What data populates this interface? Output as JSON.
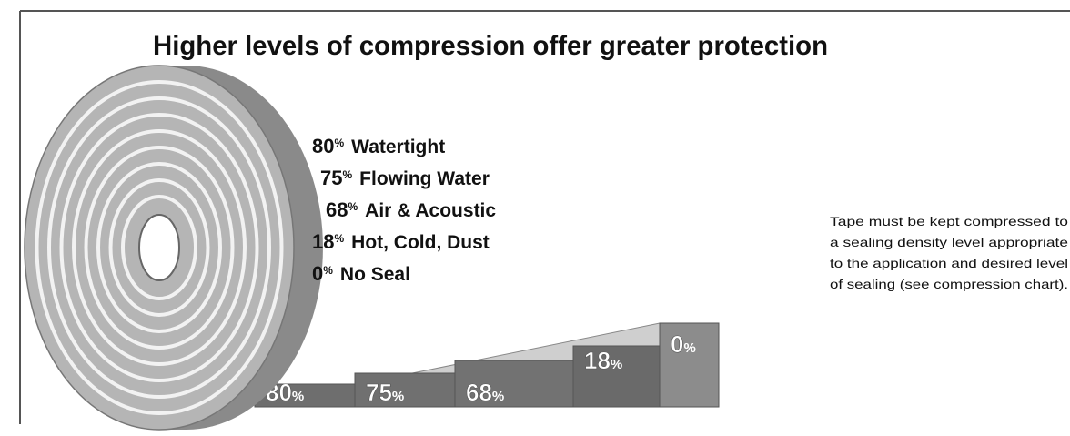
{
  "title": "Higher levels of compression offer greater protection",
  "legend": [
    {
      "percent": "80",
      "sign": "%",
      "label": "Watertight"
    },
    {
      "percent": "75",
      "sign": "%",
      "label": "Flowing Water"
    },
    {
      "percent": "68",
      "sign": "%",
      "label": "Air & Acoustic"
    },
    {
      "percent": "18",
      "sign": "%",
      "label": "Hot, Cold, Dust"
    },
    {
      "percent": "0",
      "sign": "%",
      "label": "No Seal"
    }
  ],
  "steps": [
    {
      "percent": "80",
      "sign": "%"
    },
    {
      "percent": "75",
      "sign": "%"
    },
    {
      "percent": "68",
      "sign": "%"
    },
    {
      "percent": "18",
      "sign": "%"
    },
    {
      "percent": "0",
      "sign": "%"
    }
  ],
  "note": {
    "lines": [
      "Tape must be kept compressed to",
      "a sealing density level appropriate",
      "to the application and desired level",
      "of sealing (see compression chart)."
    ]
  }
}
